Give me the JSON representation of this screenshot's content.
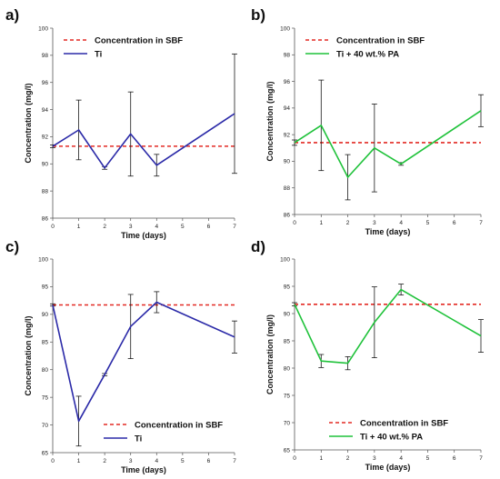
{
  "colors": {
    "reference": "#e32a24",
    "ti": "#2b2aa8",
    "ti_pa": "#1fc23a",
    "error_bar": "#1a1a1a",
    "axis": "#555555"
  },
  "chart_data": [
    {
      "type": "line",
      "panel": "a)",
      "xlabel": "Time (days)",
      "ylabel": "Concentration (mg/l)",
      "xlim": [
        0,
        7
      ],
      "ylim": [
        86,
        100
      ],
      "xticks": [
        0,
        1,
        2,
        3,
        4,
        5,
        6,
        7
      ],
      "yticks": [
        86,
        88,
        90,
        92,
        94,
        96,
        98,
        100
      ],
      "legend_position": "top-left",
      "reference": {
        "name": "Concentration in SBF",
        "value": 91.3
      },
      "series": [
        {
          "name": "Ti",
          "x": [
            0,
            1,
            2,
            3,
            4,
            7
          ],
          "y": [
            91.3,
            92.5,
            89.7,
            92.2,
            89.9,
            93.7
          ],
          "err": [
            0.1,
            2.2,
            0.1,
            3.1,
            0.8,
            4.4
          ]
        }
      ]
    },
    {
      "type": "line",
      "panel": "b)",
      "xlabel": "Time (days)",
      "ylabel": "Concentration (mg/l)",
      "xlim": [
        0,
        7
      ],
      "ylim": [
        86,
        100
      ],
      "xticks": [
        0,
        1,
        2,
        3,
        4,
        5,
        6,
        7
      ],
      "yticks": [
        86,
        88,
        90,
        92,
        94,
        96,
        98,
        100
      ],
      "legend_position": "top-left",
      "reference": {
        "name": "Concentration in SBF",
        "value": 91.4
      },
      "series": [
        {
          "name": "Ti + 40 wt.% PA",
          "x": [
            0,
            1,
            2,
            3,
            4,
            7
          ],
          "y": [
            91.4,
            92.7,
            88.8,
            91.0,
            89.8,
            93.8
          ],
          "err": [
            0.2,
            3.4,
            1.7,
            3.3,
            0.1,
            1.2
          ]
        }
      ]
    },
    {
      "type": "line",
      "panel": "c)",
      "xlabel": "Time (days)",
      "ylabel": "Concentration (mg/l)",
      "xlim": [
        0,
        7
      ],
      "ylim": [
        65,
        100
      ],
      "xticks": [
        0,
        1,
        2,
        3,
        4,
        5,
        6,
        7
      ],
      "yticks": [
        65,
        70,
        75,
        80,
        85,
        90,
        95,
        100
      ],
      "legend_position": "bottom-right",
      "reference": {
        "name": "Concentration in SBF",
        "value": 91.7
      },
      "series": [
        {
          "name": "Ti",
          "x": [
            0,
            1,
            2,
            3,
            4,
            7
          ],
          "y": [
            91.7,
            70.7,
            79.1,
            87.8,
            92.2,
            85.9
          ],
          "err": [
            0.2,
            4.5,
            0.2,
            5.8,
            1.9,
            2.9
          ]
        }
      ]
    },
    {
      "type": "line",
      "panel": "d)",
      "xlabel": "Time (days)",
      "ylabel": "Concentration (mg/l)",
      "xlim": [
        0,
        7
      ],
      "ylim": [
        65,
        100
      ],
      "xticks": [
        0,
        1,
        2,
        3,
        4,
        5,
        6,
        7
      ],
      "yticks": [
        65,
        70,
        75,
        80,
        85,
        90,
        95,
        100
      ],
      "legend_position": "bottom-right",
      "reference": {
        "name": "Concentration in SBF",
        "value": 91.7
      },
      "series": [
        {
          "name": "Ti + 40 wt.% PA",
          "x": [
            0,
            1,
            2,
            3,
            4,
            7
          ],
          "y": [
            91.7,
            81.3,
            80.9,
            88.4,
            94.4,
            85.9
          ],
          "err": [
            0.3,
            1.2,
            1.2,
            6.5,
            1.0,
            3.0
          ]
        }
      ]
    }
  ]
}
